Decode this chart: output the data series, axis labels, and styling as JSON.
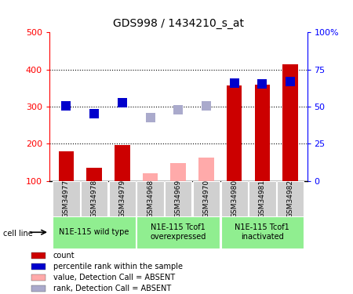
{
  "title": "GDS998 / 1434210_s_at",
  "samples": [
    "GSM34977",
    "GSM34978",
    "GSM34979",
    "GSM34968",
    "GSM34969",
    "GSM34970",
    "GSM34980",
    "GSM34981",
    "GSM34982"
  ],
  "count_values": [
    180,
    135,
    197,
    120,
    148,
    163,
    357,
    360,
    413
  ],
  "count_absent": [
    false,
    false,
    false,
    true,
    true,
    true,
    false,
    false,
    false
  ],
  "rank_values": [
    303,
    280,
    311,
    270,
    291,
    302,
    363,
    362,
    368
  ],
  "rank_absent": [
    false,
    false,
    false,
    true,
    true,
    true,
    false,
    false,
    false
  ],
  "count_color_present": "#cc0000",
  "count_color_absent": "#ffaaaa",
  "rank_color_present": "#0000cc",
  "rank_color_absent": "#aaaacc",
  "ylim_left": [
    100,
    500
  ],
  "ylim_right": [
    0,
    100
  ],
  "yticks_left": [
    100,
    200,
    300,
    400,
    500
  ],
  "ytick_labels_left": [
    "100",
    "200",
    "300",
    "400",
    "500"
  ],
  "yticks_right_pct": [
    0,
    25,
    50,
    75,
    100
  ],
  "ytick_labels_right": [
    "0",
    "25",
    "50",
    "75",
    "100%"
  ],
  "rank_marker_size": 70,
  "background_color": "#ffffff",
  "legend_items": [
    {
      "label": "count",
      "color": "#cc0000"
    },
    {
      "label": "percentile rank within the sample",
      "color": "#0000cc"
    },
    {
      "label": "value, Detection Call = ABSENT",
      "color": "#ffaaaa"
    },
    {
      "label": "rank, Detection Call = ABSENT",
      "color": "#aaaacc"
    }
  ],
  "cell_line_label": "cell line",
  "sample_bg_color": "#d0d0d0",
  "group_bg_color": "#90ee90",
  "group_info": [
    {
      "start": 0,
      "end": 2,
      "label": "N1E-115 wild type"
    },
    {
      "start": 3,
      "end": 5,
      "label": "N1E-115 Tcof1\noverexpressed"
    },
    {
      "start": 6,
      "end": 8,
      "label": "N1E-115 Tcof1\ninactivated"
    }
  ]
}
